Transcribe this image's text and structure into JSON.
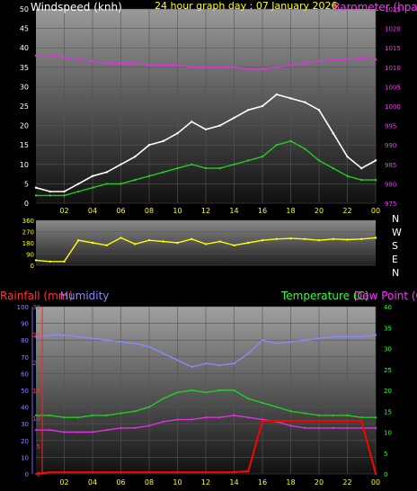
{
  "chart_data": [
    {
      "type": "line",
      "title": "24 hour graph day : 07 January 2026",
      "ylabel": "Windspeed (knh)",
      "y2label": "Barometer (hpa)",
      "ylim": [
        0,
        50
      ],
      "y2lim": [
        975,
        1025
      ],
      "yticks": [
        "0",
        "5",
        "10",
        "15",
        "20",
        "25",
        "30",
        "35",
        "40",
        "45",
        "50"
      ],
      "y2ticks": [
        "975",
        "980",
        "985",
        "990",
        "995",
        "1000",
        "1005",
        "1010",
        "1015",
        "1020",
        "1025"
      ],
      "xticks": [
        "02",
        "04",
        "06",
        "08",
        "10",
        "12",
        "14",
        "16",
        "18",
        "20",
        "22",
        "00"
      ],
      "x_hours": [
        0,
        1,
        2,
        3,
        4,
        5,
        6,
        7,
        8,
        9,
        10,
        11,
        12,
        13,
        14,
        15,
        16,
        17,
        18,
        19,
        20,
        21,
        22,
        23,
        24
      ],
      "series": [
        {
          "name": "gust",
          "color": "#ffffff",
          "values": [
            4,
            3,
            3,
            5,
            7,
            8,
            10,
            12,
            15,
            16,
            18,
            21,
            19,
            20,
            22,
            24,
            25,
            28,
            27,
            26,
            24,
            18,
            12,
            9,
            11
          ]
        },
        {
          "name": "average",
          "color": "#22cc22",
          "values": [
            2,
            2,
            2,
            3,
            4,
            5,
            5,
            6,
            7,
            8,
            9,
            10,
            9,
            9,
            10,
            11,
            12,
            15,
            16,
            14,
            11,
            9,
            7,
            6,
            6
          ]
        },
        {
          "name": "barometer",
          "color": "#dd33dd",
          "axis": "right",
          "values": [
            1013,
            1013,
            1012.5,
            1012,
            1011.5,
            1011,
            1011,
            1011,
            1010.5,
            1010.5,
            1010.5,
            1010,
            1010,
            1010,
            1010,
            1009.5,
            1009.5,
            1010,
            1010.5,
            1011,
            1011.5,
            1012,
            1012,
            1012.5,
            1012
          ]
        }
      ]
    },
    {
      "type": "line",
      "ylabel": "",
      "ylim": [
        0,
        360
      ],
      "yticks": [
        "0",
        "90",
        "180",
        "270",
        "360"
      ],
      "right_labels": [
        "N",
        "W",
        "S",
        "E",
        "N"
      ],
      "xticks": [],
      "series": [
        {
          "name": "direction",
          "color": "#ffff00",
          "values": [
            40,
            30,
            30,
            200,
            180,
            160,
            220,
            170,
            200,
            190,
            180,
            210,
            170,
            190,
            160,
            180,
            200,
            210,
            215,
            210,
            200,
            210,
            205,
            210,
            220
          ]
        }
      ]
    },
    {
      "type": "line",
      "labels": {
        "rainfall": "Rainfall (mm)",
        "humidity": "Humidity",
        "temperature": "Temperature (C)",
        "dewpoint": "Dew Point (C)"
      },
      "y_left1_lim": [
        0,
        100
      ],
      "y_left1_ticks": [
        "0",
        "10",
        "20",
        "30",
        "40",
        "50",
        "60",
        "70",
        "80",
        "90",
        "100"
      ],
      "y_left2_lim": [
        0,
        30
      ],
      "y_left2_ticks": [
        "0",
        "5",
        "10",
        "15",
        "20",
        "25",
        "30"
      ],
      "y_right_lim": [
        0,
        40
      ],
      "y_right_ticks": [
        "0",
        "5",
        "10",
        "15",
        "20",
        "25",
        "30",
        "35",
        "40"
      ],
      "xticks": [
        "02",
        "04",
        "06",
        "08",
        "10",
        "12",
        "14",
        "16",
        "18",
        "20",
        "22",
        "00"
      ],
      "x_hours": [
        0,
        1,
        2,
        3,
        4,
        5,
        6,
        7,
        8,
        9,
        10,
        11,
        12,
        13,
        14,
        15,
        16,
        17,
        18,
        19,
        20,
        21,
        22,
        23,
        24
      ],
      "series": [
        {
          "name": "humidity",
          "color": "#8888ff",
          "axis": "left1",
          "values": [
            82,
            83,
            83,
            82,
            81,
            80,
            79,
            78,
            76,
            72,
            68,
            64,
            66,
            65,
            66,
            72,
            80,
            78,
            79,
            80,
            81,
            82,
            82,
            82,
            83
          ]
        },
        {
          "name": "temperature",
          "color": "#22cc22",
          "axis": "right",
          "values": [
            14,
            14,
            13.5,
            13.5,
            14,
            14,
            14.5,
            15,
            16,
            18,
            19.5,
            20,
            19.5,
            20,
            20,
            18,
            17,
            16,
            15,
            14.5,
            14,
            14,
            14,
            13.5,
            13.5
          ]
        },
        {
          "name": "dewpoint",
          "color": "#dd33dd",
          "axis": "right",
          "values": [
            10.5,
            10.5,
            10,
            10,
            10,
            10.5,
            11,
            11,
            11.5,
            12.5,
            13,
            13,
            13.5,
            13.5,
            14,
            13.5,
            13,
            12.5,
            11.5,
            11,
            11,
            11,
            11,
            11,
            11
          ]
        },
        {
          "name": "rainfall",
          "color": "#ff0000",
          "axis": "left2",
          "values": [
            0,
            0.3,
            0.3,
            0.3,
            0.3,
            0.3,
            0.3,
            0.3,
            0.3,
            0.3,
            0.3,
            0.3,
            0.3,
            0.3,
            0.3,
            0.5,
            9.5,
            9.5,
            9.5,
            9.5,
            9.5,
            9.5,
            9.5,
            9.5,
            0
          ]
        }
      ]
    }
  ]
}
